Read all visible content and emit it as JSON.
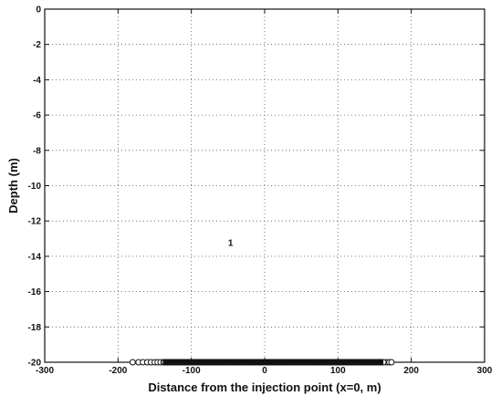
{
  "chart_data": {
    "type": "scatter",
    "title": "",
    "xlabel": "Distance from the injection point (x=0, m)",
    "ylabel": "Depth (m)",
    "xlim": [
      -300,
      300
    ],
    "ylim": [
      -20,
      0
    ],
    "x_ticks": [
      -300,
      -200,
      -100,
      0,
      100,
      200,
      300
    ],
    "y_ticks": [
      0,
      -2,
      -4,
      -6,
      -8,
      -10,
      -12,
      -14,
      -16,
      -18,
      -20
    ],
    "grid": true,
    "legend": "none",
    "marker": "open-circle",
    "series": [
      {
        "points": {
          "x_sparse": [
            -180,
            -172,
            -166,
            -160,
            -155,
            -150,
            -146,
            -142,
            166,
            170,
            173
          ],
          "x_dense_range": [
            -138,
            162
          ],
          "y": -20
        }
      }
    ],
    "annotations": [
      {
        "text": "1",
        "x": -50,
        "y": -13.4
      }
    ]
  }
}
